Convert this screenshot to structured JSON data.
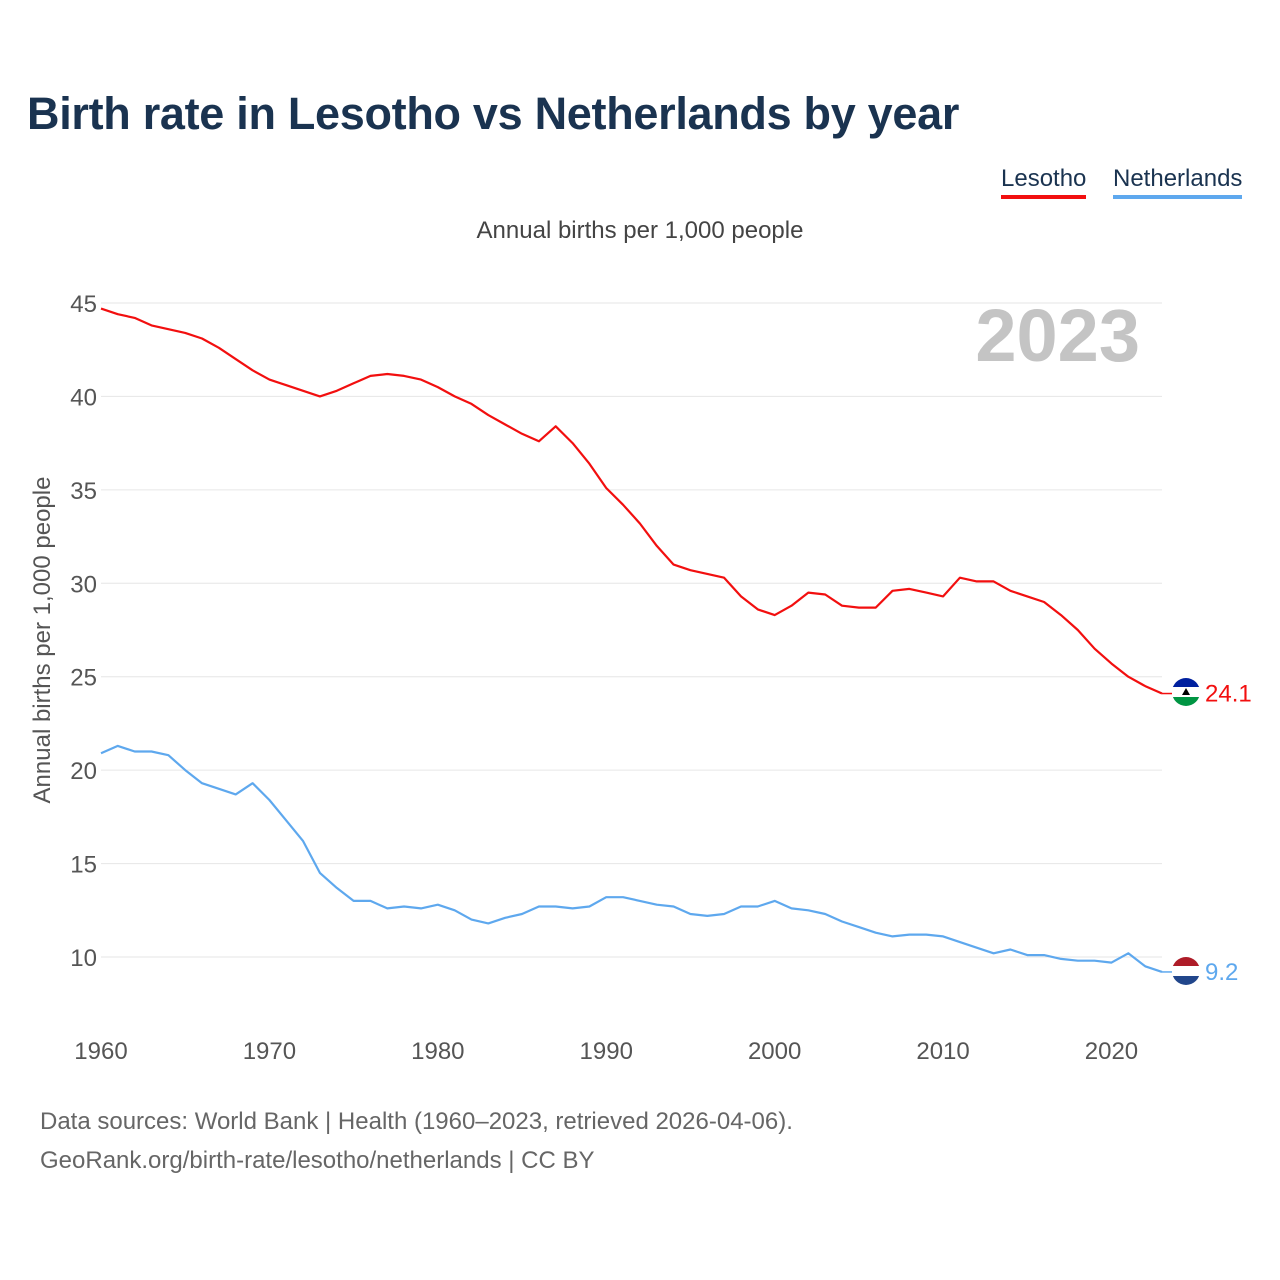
{
  "title": "Birth rate in Lesotho vs Netherlands by year",
  "legend": {
    "items": [
      {
        "label": "Lesotho",
        "color": "#f20f0f"
      },
      {
        "label": "Netherlands",
        "color": "#5ea8ee"
      }
    ]
  },
  "footer": {
    "sources": "Data sources: World Bank | Health (1960–2023, retrieved 2026-04-06).",
    "link": "GeoRank.org/birth-rate/lesotho/netherlands | CC BY"
  },
  "chart_data": {
    "type": "line",
    "title": "Birth rate in Lesotho vs Netherlands by year",
    "subtitle": "Annual births per 1,000 people",
    "xlabel": "",
    "ylabel": "Annual births per 1,000 people",
    "year_label": "2023",
    "xlim": [
      1960,
      2023
    ],
    "ylim": [
      7,
      45.5
    ],
    "x_ticks": [
      1960,
      1970,
      1980,
      1990,
      2000,
      2010,
      2020
    ],
    "y_ticks": [
      10,
      15,
      20,
      25,
      30,
      35,
      40,
      45
    ],
    "grid": true,
    "x": [
      1960,
      1961,
      1962,
      1963,
      1964,
      1965,
      1966,
      1967,
      1968,
      1969,
      1970,
      1971,
      1972,
      1973,
      1974,
      1975,
      1976,
      1977,
      1978,
      1979,
      1980,
      1981,
      1982,
      1983,
      1984,
      1985,
      1986,
      1987,
      1988,
      1989,
      1990,
      1991,
      1992,
      1993,
      1994,
      1995,
      1996,
      1997,
      1998,
      1999,
      2000,
      2001,
      2002,
      2003,
      2004,
      2005,
      2006,
      2007,
      2008,
      2009,
      2010,
      2011,
      2012,
      2013,
      2014,
      2015,
      2016,
      2017,
      2018,
      2019,
      2020,
      2021,
      2022,
      2023
    ],
    "series": [
      {
        "name": "Lesotho",
        "color": "#f20f0f",
        "end_label": "24.1",
        "values": [
          44.7,
          44.4,
          44.2,
          43.8,
          43.6,
          43.4,
          43.1,
          42.6,
          42.0,
          41.4,
          40.9,
          40.6,
          40.3,
          40.0,
          40.3,
          40.7,
          41.1,
          41.2,
          41.1,
          40.9,
          40.5,
          40.0,
          39.6,
          39.0,
          38.5,
          38.0,
          37.6,
          38.4,
          37.5,
          36.4,
          35.1,
          34.2,
          33.2,
          32.0,
          31.0,
          30.7,
          30.5,
          30.3,
          29.3,
          28.6,
          28.3,
          28.8,
          29.5,
          29.4,
          28.8,
          28.7,
          28.7,
          29.6,
          29.7,
          29.5,
          29.3,
          30.3,
          30.1,
          30.1,
          29.6,
          29.3,
          29.0,
          28.3,
          27.5,
          26.5,
          25.7,
          25.0,
          24.5,
          24.1
        ]
      },
      {
        "name": "Netherlands",
        "color": "#5ea8ee",
        "end_label": "9.2",
        "values": [
          20.9,
          21.3,
          21.0,
          21.0,
          20.8,
          20.0,
          19.3,
          19.0,
          18.7,
          19.3,
          18.4,
          17.3,
          16.2,
          14.5,
          13.7,
          13.0,
          13.0,
          12.6,
          12.7,
          12.6,
          12.8,
          12.5,
          12.0,
          11.8,
          12.1,
          12.3,
          12.7,
          12.7,
          12.6,
          12.7,
          13.2,
          13.2,
          13.0,
          12.8,
          12.7,
          12.3,
          12.2,
          12.3,
          12.7,
          12.7,
          13.0,
          12.6,
          12.5,
          12.3,
          11.9,
          11.6,
          11.3,
          11.1,
          11.2,
          11.2,
          11.1,
          10.8,
          10.5,
          10.2,
          10.4,
          10.1,
          10.1,
          9.9,
          9.8,
          9.8,
          9.7,
          10.2,
          9.5,
          9.2
        ]
      }
    ]
  }
}
